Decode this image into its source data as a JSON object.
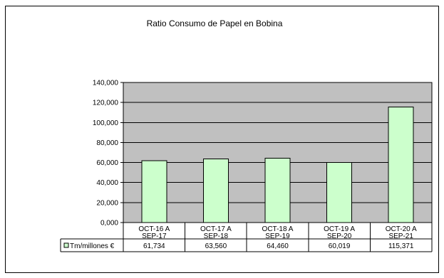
{
  "chart_data": {
    "type": "bar",
    "title": "Ratio Consumo de Papel en Bobina",
    "categories": [
      [
        "OCT-16 A",
        "SEP-17"
      ],
      [
        "OCT-17 A",
        "SEP-18"
      ],
      [
        "OCT-18 A",
        "SEP-19"
      ],
      [
        "OCT-19 A",
        "SEP-20"
      ],
      [
        "OCT-20 A",
        "SEP-21"
      ]
    ],
    "series": [
      {
        "name": "Tm/millones €",
        "values": [
          61.734,
          63.56,
          64.46,
          60.019,
          115.371
        ],
        "value_labels": [
          "61,734",
          "63,560",
          "64,460",
          "60,019",
          "115,371"
        ],
        "color": "#ccffcc"
      }
    ],
    "ylim": [
      0,
      140
    ],
    "yticks": [
      0,
      20,
      40,
      60,
      80,
      100,
      120,
      140
    ],
    "ytick_labels": [
      "0,000",
      "20,000",
      "40,000",
      "60,000",
      "80,000",
      "100,000",
      "120,000",
      "140,000"
    ],
    "plot_background": "#c0c0c0",
    "grid": true,
    "legend": "data-table",
    "xlabel": "",
    "ylabel": ""
  }
}
